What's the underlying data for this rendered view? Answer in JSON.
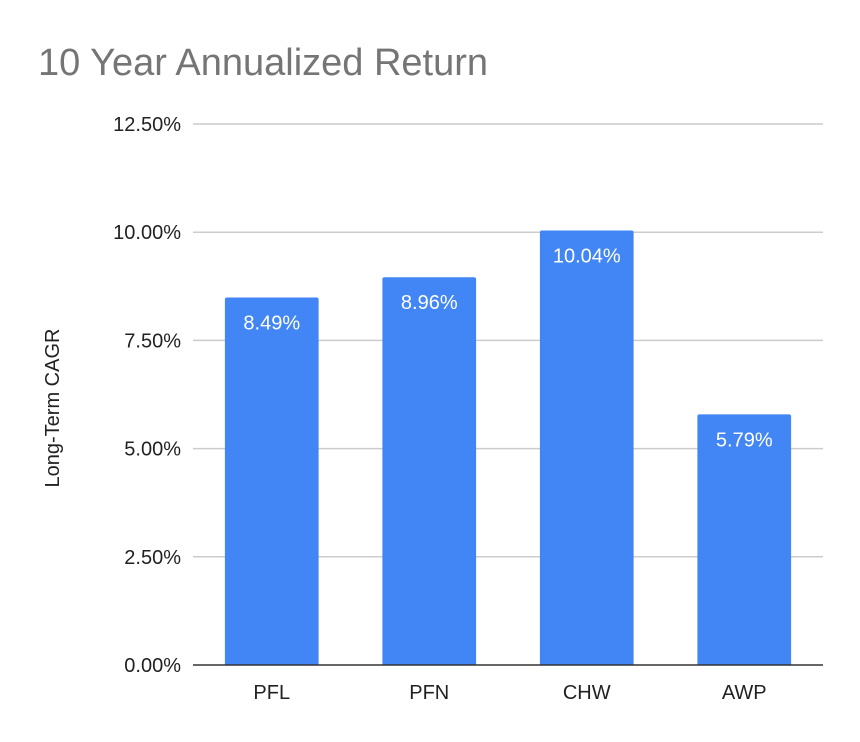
{
  "chart_data": {
    "type": "bar",
    "title": "10 Year Annualized Return",
    "ylabel": "Long-Term CAGR",
    "xlabel": "",
    "categories": [
      "PFL",
      "PFN",
      "CHW",
      "AWP"
    ],
    "values": [
      8.49,
      8.96,
      10.04,
      5.79
    ],
    "value_labels": [
      "8.49%",
      "8.96%",
      "10.04%",
      "5.79%"
    ],
    "ylim": [
      0,
      12.5
    ],
    "yticks": [
      0,
      2.5,
      5,
      7.5,
      10,
      12.5
    ],
    "ytick_labels": [
      "0.00%",
      "2.50%",
      "5.00%",
      "7.50%",
      "10.00%",
      "12.50%"
    ],
    "grid": true,
    "legend": "none",
    "colors": {
      "bar": "#4285f4",
      "grid": "#cccccc",
      "baseline": "#333333",
      "title": "#757575",
      "text": "#222222",
      "data_label": "#ffffff"
    }
  }
}
